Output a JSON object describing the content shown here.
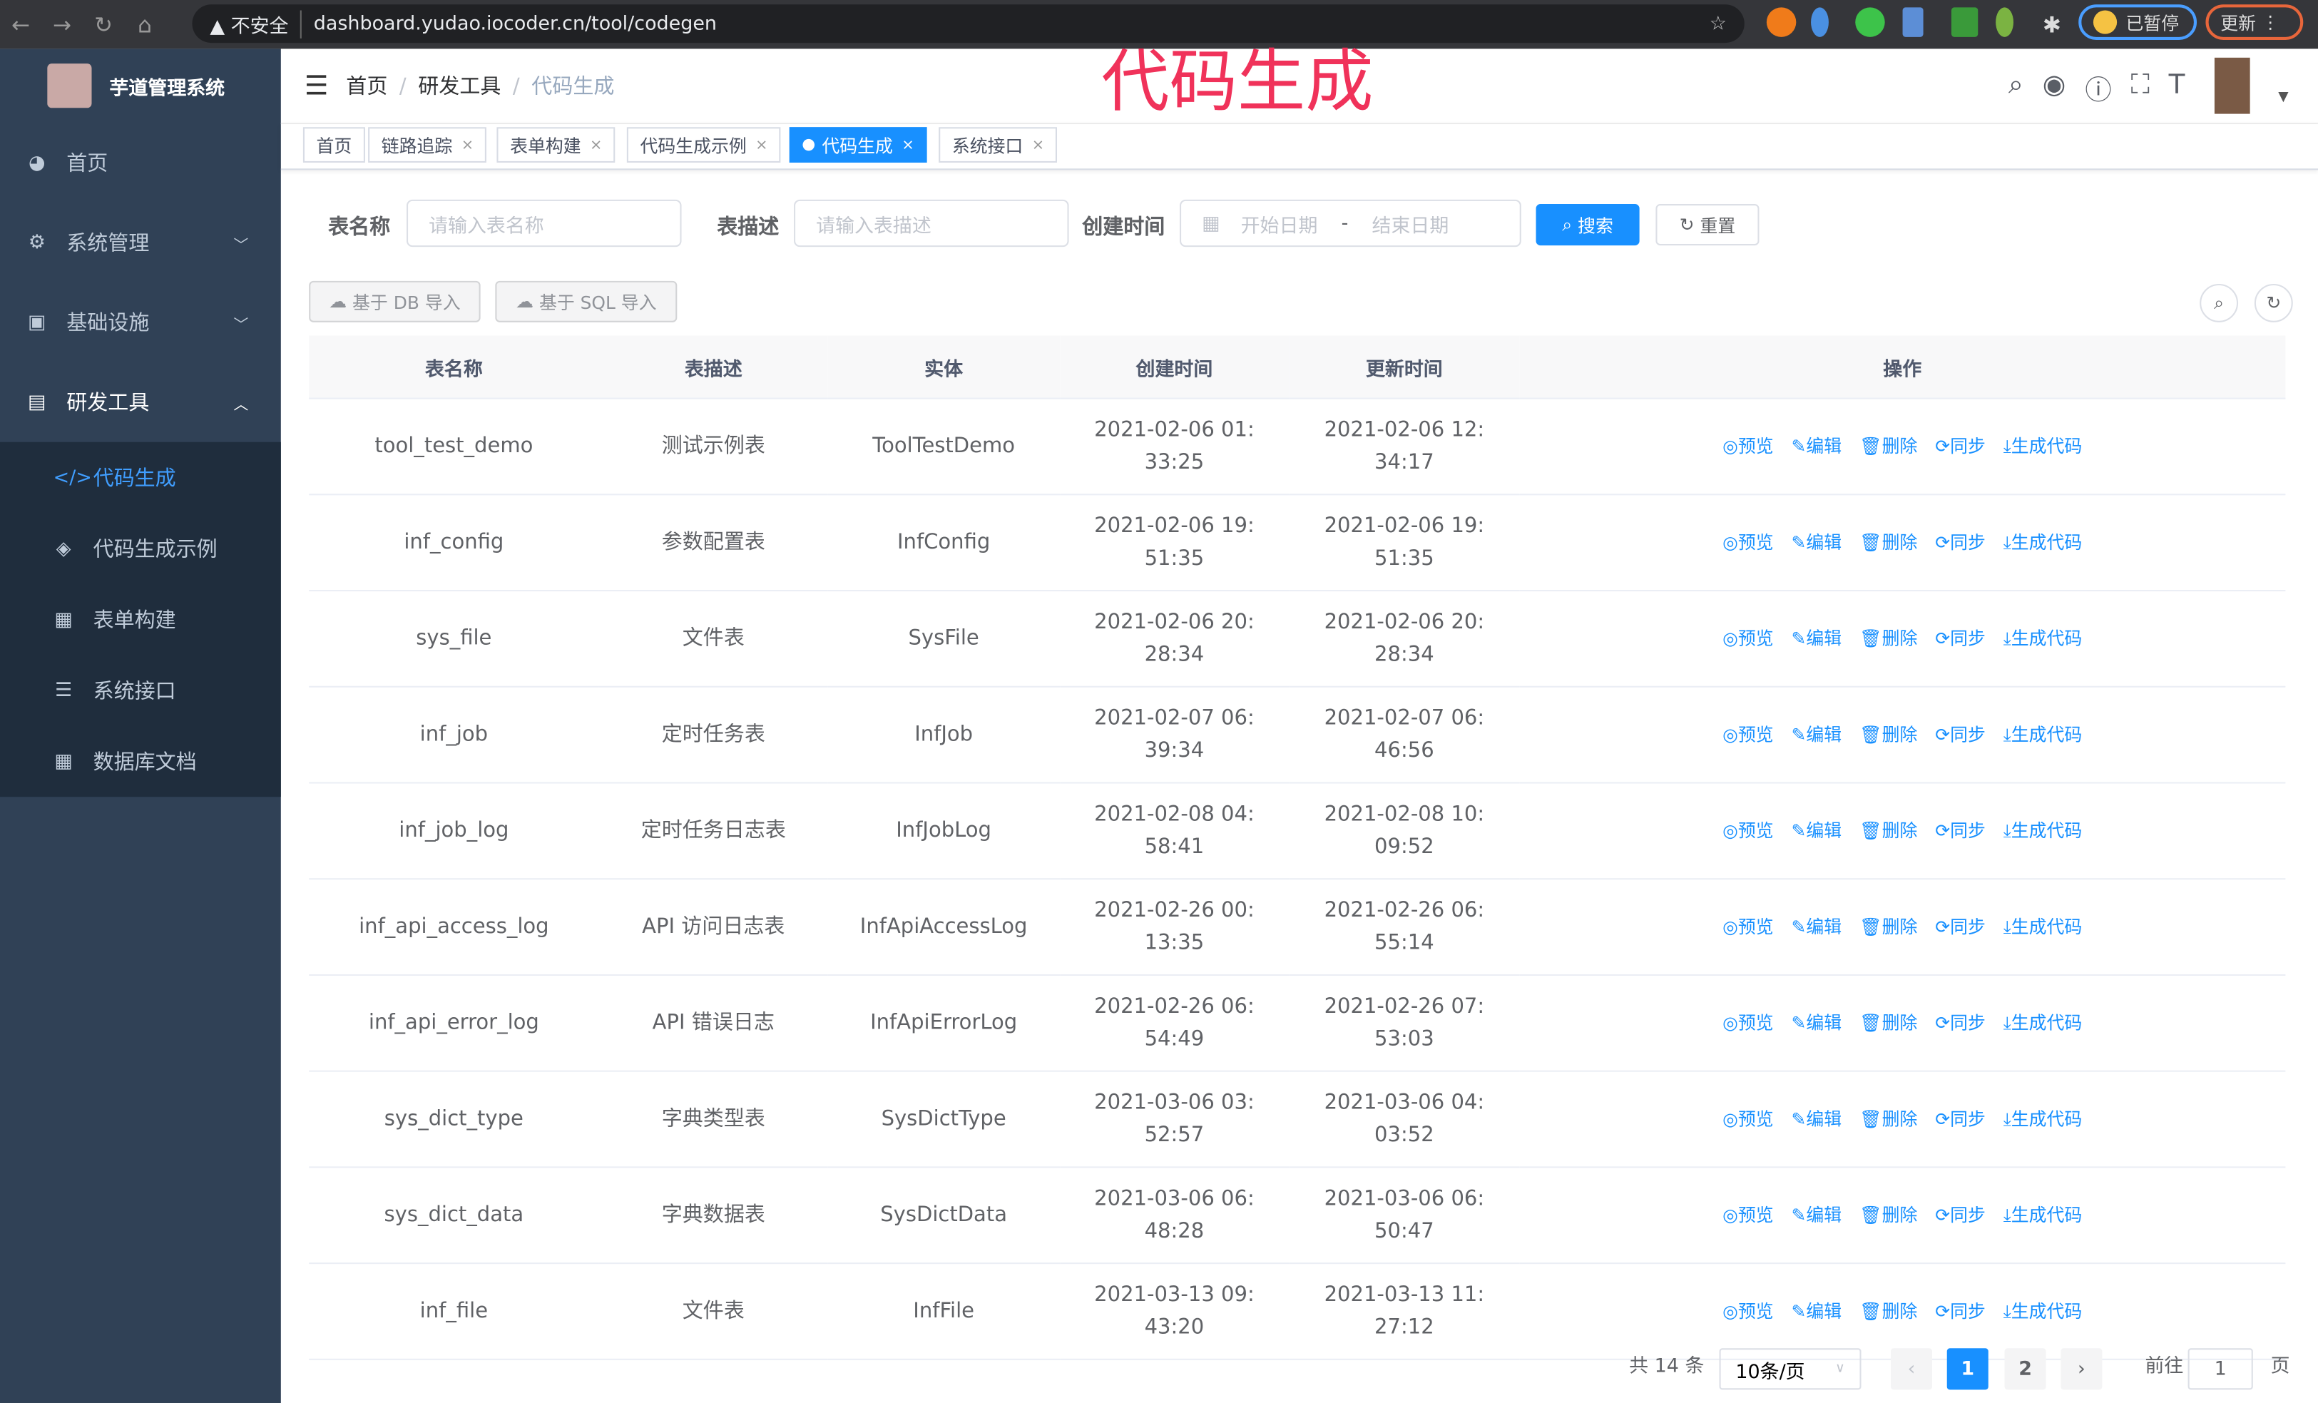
{
  "browser": {
    "security": "不安全",
    "url": "dashboard.yudao.iocoder.cn/tool/codegen",
    "paused_label": "已暂停",
    "update_label": "更新"
  },
  "watermark": "代码生成",
  "app": {
    "title": "芋道管理系统"
  },
  "sidebar": {
    "items": [
      {
        "label": "首页",
        "icon": "dashboard-icon"
      },
      {
        "label": "系统管理",
        "icon": "gear-icon"
      },
      {
        "label": "基础设施",
        "icon": "monitor-icon"
      },
      {
        "label": "研发工具",
        "icon": "toolbox-icon"
      }
    ],
    "sub_items": [
      {
        "label": "代码生成",
        "icon": "code-icon",
        "active": true
      },
      {
        "label": "代码生成示例",
        "icon": "shield-icon"
      },
      {
        "label": "表单构建",
        "icon": "form-icon"
      },
      {
        "label": "系统接口",
        "icon": "sliders-icon"
      },
      {
        "label": "数据库文档",
        "icon": "table-icon"
      }
    ]
  },
  "breadcrumb": [
    "首页",
    "研发工具",
    "代码生成"
  ],
  "tags": [
    {
      "label": "首页"
    },
    {
      "label": "链路追踪"
    },
    {
      "label": "表单构建"
    },
    {
      "label": "代码生成示例"
    },
    {
      "label": "代码生成",
      "active": true
    },
    {
      "label": "系统接口"
    }
  ],
  "search": {
    "table_name_label": "表名称",
    "table_name_placeholder": "请输入表名称",
    "table_desc_label": "表描述",
    "table_desc_placeholder": "请输入表描述",
    "created_label": "创建时间",
    "start_placeholder": "开始日期",
    "end_placeholder": "结束日期",
    "range_sep": "-",
    "search_btn": "搜索",
    "reset_btn": "重置"
  },
  "toolbar": {
    "import_db": "基于 DB 导入",
    "import_sql": "基于 SQL 导入"
  },
  "table": {
    "headers": [
      "表名称",
      "表描述",
      "实体",
      "创建时间",
      "更新时间",
      "操作"
    ],
    "actions": [
      "预览",
      "编辑",
      "删除",
      "同步",
      "生成代码"
    ],
    "rows": [
      [
        "tool_test_demo",
        "测试示例表",
        "ToolTestDemo",
        "2021-02-06 01:33:25",
        "2021-02-06 12:34:17"
      ],
      [
        "inf_config",
        "参数配置表",
        "InfConfig",
        "2021-02-06 19:51:35",
        "2021-02-06 19:51:35"
      ],
      [
        "sys_file",
        "文件表",
        "SysFile",
        "2021-02-06 20:28:34",
        "2021-02-06 20:28:34"
      ],
      [
        "inf_job",
        "定时任务表",
        "InfJob",
        "2021-02-07 06:39:34",
        "2021-02-07 06:46:56"
      ],
      [
        "inf_job_log",
        "定时任务日志表",
        "InfJobLog",
        "2021-02-08 04:58:41",
        "2021-02-08 10:09:52"
      ],
      [
        "inf_api_access_log",
        "API 访问日志表",
        "InfApiAccessLog",
        "2021-02-26 00:13:35",
        "2021-02-26 06:55:14"
      ],
      [
        "inf_api_error_log",
        "API 错误日志",
        "InfApiErrorLog",
        "2021-02-26 06:54:49",
        "2021-02-26 07:53:03"
      ],
      [
        "sys_dict_type",
        "字典类型表",
        "SysDictType",
        "2021-03-06 03:52:57",
        "2021-03-06 04:03:52"
      ],
      [
        "sys_dict_data",
        "字典数据表",
        "SysDictData",
        "2021-03-06 06:48:28",
        "2021-03-06 06:50:47"
      ],
      [
        "inf_file",
        "文件表",
        "InfFile",
        "2021-03-13 09:43:20",
        "2021-03-13 11:27:12"
      ]
    ]
  },
  "pagination": {
    "total": "共 14 条",
    "page_size": "10条/页",
    "pages": [
      "1",
      "2"
    ],
    "current": 1,
    "goto_label": "前往",
    "goto_value": "1",
    "page_suffix": "页"
  },
  "colors": {
    "accent": "#1890ff",
    "sidebar": "#304156",
    "watermark": "#f0325a"
  }
}
